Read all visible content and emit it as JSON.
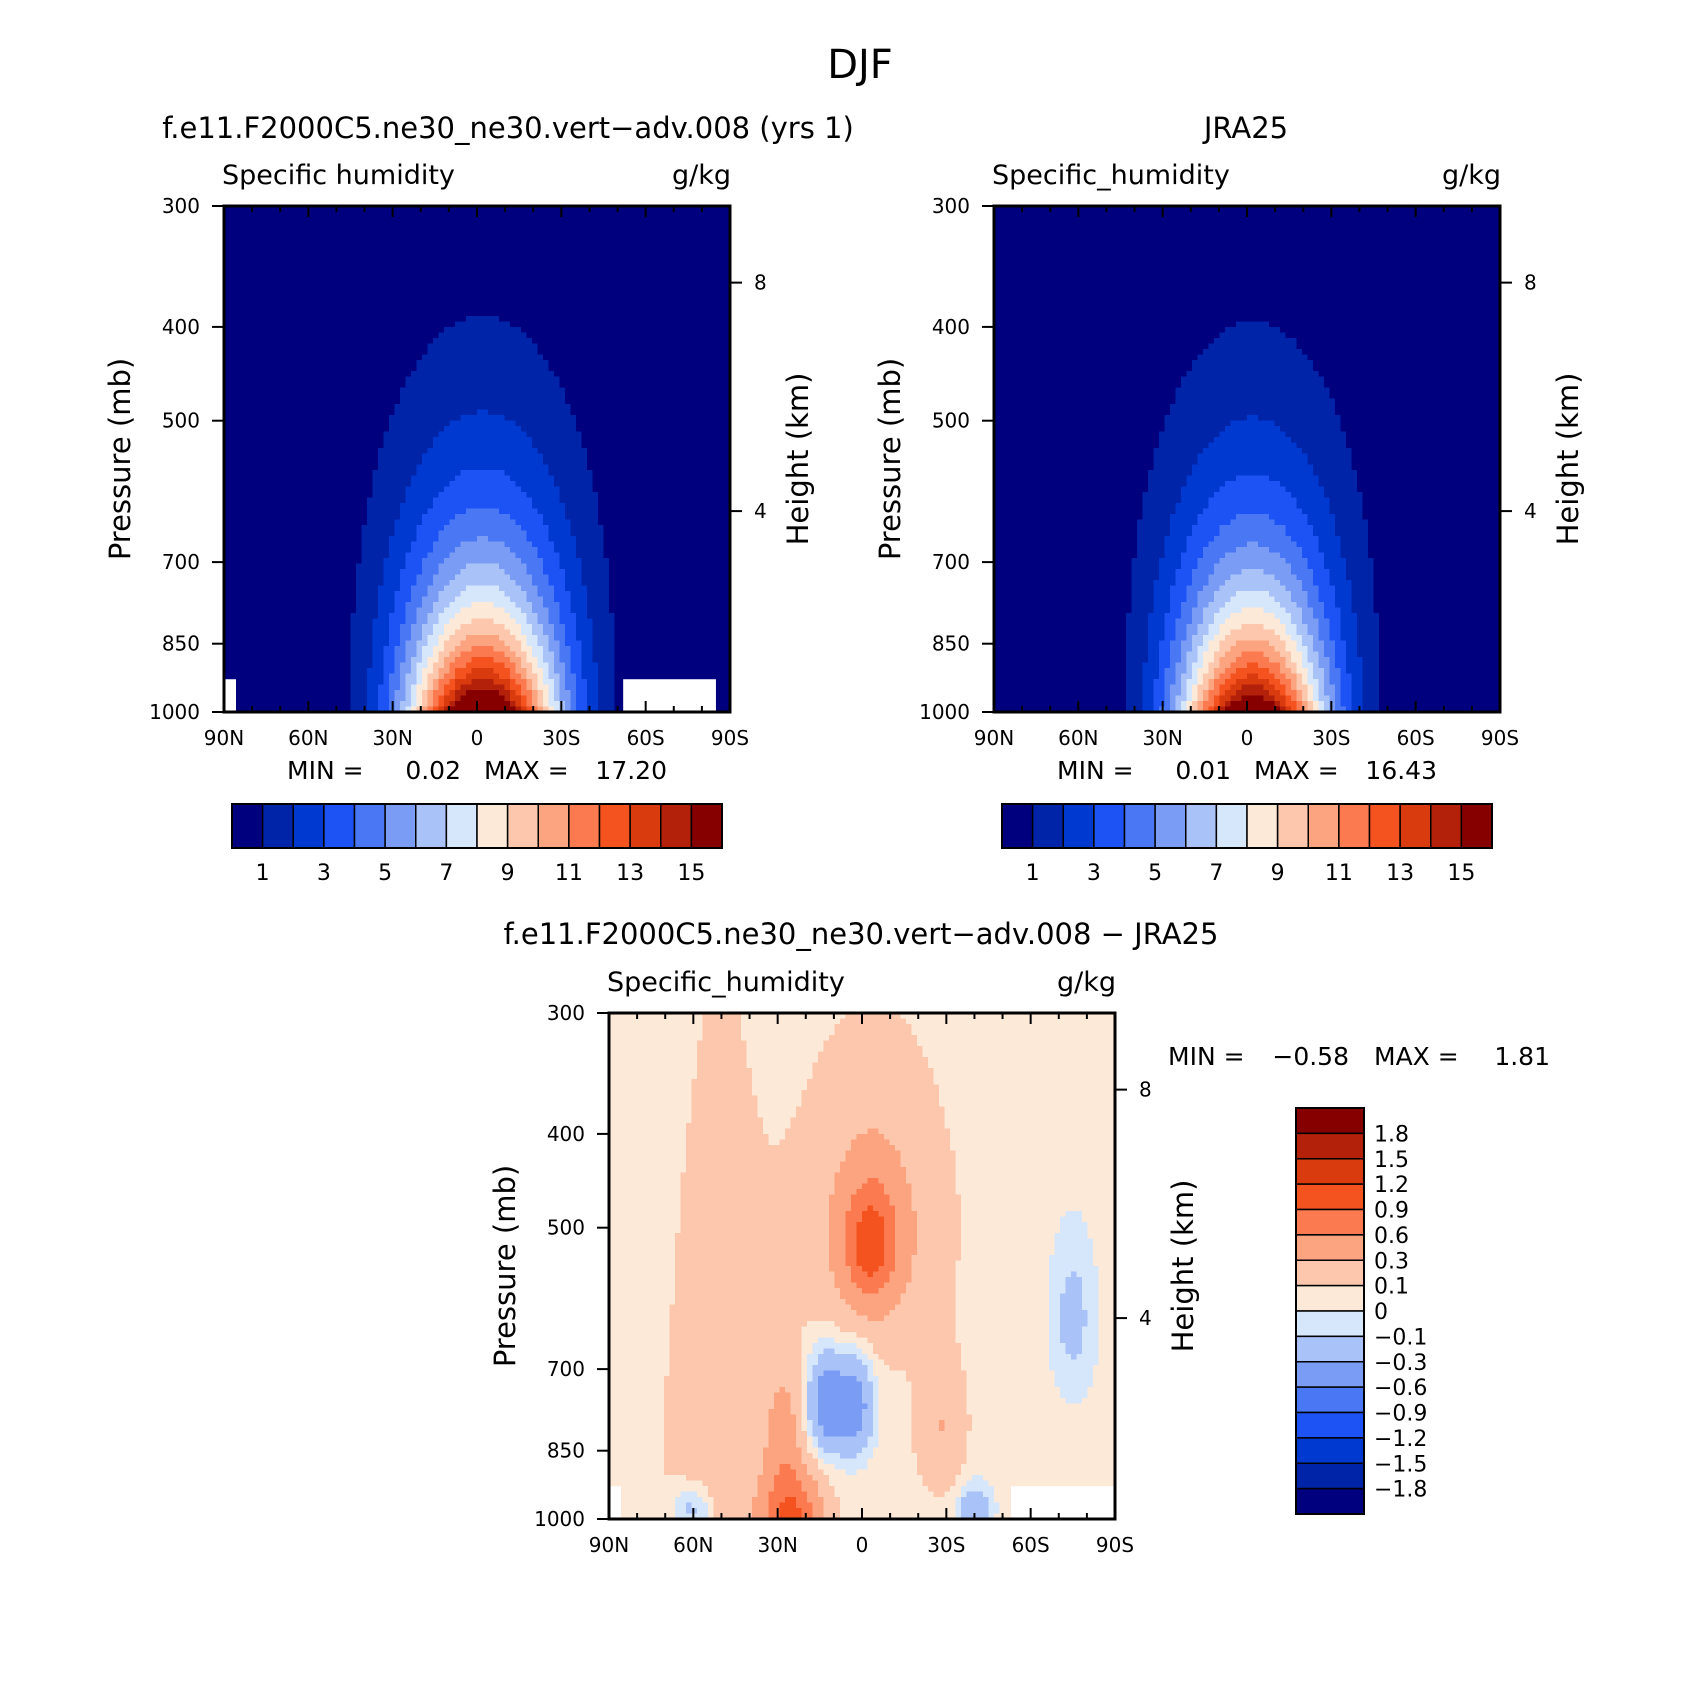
{
  "figure": {
    "title": "DJF"
  },
  "colors": {
    "q_scale": [
      "#00007f",
      "#0024a8",
      "#0039d0",
      "#1d53f5",
      "#4a78f5",
      "#7a9cf5",
      "#a9c3f8",
      "#d6e6fb",
      "#fde9d7",
      "#fcc7ad",
      "#fca47f",
      "#fb7a4f",
      "#f4521f",
      "#d93a0e",
      "#b4210a",
      "#860000"
    ],
    "diff_scale": [
      "#00007f",
      "#0024a8",
      "#0039d0",
      "#1d53f5",
      "#4a78f5",
      "#7a9cf5",
      "#a9c3f8",
      "#d6e6fb",
      "#fde9d7",
      "#fcc7ad",
      "#fca47f",
      "#fb7a4f",
      "#f4521f",
      "#d93a0e",
      "#b4210a",
      "#860000"
    ],
    "missing": "#ffffff"
  },
  "chart_data": [
    {
      "type": "contour",
      "panel_title": "f.e11.F2000C5.ne30_ne30.vert−adv.008 (yrs 1)",
      "left_label": "Specific humidity",
      "units": "g/kg",
      "xlabel": "",
      "ylabel": "Pressure (mb)",
      "ylabel_right": "Height (km)",
      "x_ticks": [
        "90N",
        "60N",
        "30N",
        "0",
        "30S",
        "60S",
        "90S"
      ],
      "y_ticks": [
        "300",
        "400",
        "500",
        "700",
        "850",
        "1000"
      ],
      "y_right_ticks": [
        "8",
        "4"
      ],
      "ylim": [
        1000,
        300
      ],
      "y_scale": "log",
      "stats": {
        "min_label": "MIN =",
        "min": "0.02",
        "max_label": "MAX =",
        "max": "17.20"
      },
      "levels": [
        1,
        2,
        3,
        4,
        5,
        6,
        7,
        8,
        9,
        10,
        11,
        12,
        13,
        14,
        15
      ],
      "colorbar_labels": [
        "1",
        "3",
        "5",
        "7",
        "9",
        "11",
        "13",
        "15"
      ],
      "field": {
        "peak": 17.2,
        "peak_lat": -2,
        "width_surface": 28,
        "width_decay_to": 300,
        "base": 0.02,
        "lapse": 190
      }
    },
    {
      "type": "contour",
      "panel_title": "JRA25",
      "left_label": "Specific_humidity",
      "units": "g/kg",
      "xlabel": "",
      "ylabel": "Pressure (mb)",
      "ylabel_right": "Height (km)",
      "x_ticks": [
        "90N",
        "60N",
        "30N",
        "0",
        "30S",
        "60S",
        "90S"
      ],
      "y_ticks": [
        "300",
        "400",
        "500",
        "700",
        "850",
        "1000"
      ],
      "y_right_ticks": [
        "8",
        "4"
      ],
      "ylim": [
        1000,
        300
      ],
      "y_scale": "log",
      "stats": {
        "min_label": "MIN =",
        "min": "0.01",
        "max_label": "MAX =",
        "max": "16.43"
      },
      "levels": [
        1,
        2,
        3,
        4,
        5,
        6,
        7,
        8,
        9,
        10,
        11,
        12,
        13,
        14,
        15
      ],
      "colorbar_labels": [
        "1",
        "3",
        "5",
        "7",
        "9",
        "11",
        "13",
        "15"
      ],
      "field": {
        "peak": 16.43,
        "peak_lat": -2,
        "width_surface": 27,
        "width_decay_to": 300,
        "base": 0.01,
        "lapse": 185
      }
    },
    {
      "type": "contour",
      "panel_title": "f.e11.F2000C5.ne30_ne30.vert−adv.008 − JRA25",
      "left_label": "Specific_humidity",
      "units": "g/kg",
      "xlabel": "",
      "ylabel": "Pressure (mb)",
      "ylabel_right": "Height (km)",
      "x_ticks": [
        "90N",
        "60N",
        "30N",
        "0",
        "30S",
        "60S",
        "90S"
      ],
      "y_ticks": [
        "300",
        "400",
        "500",
        "700",
        "850",
        "1000"
      ],
      "y_right_ticks": [
        "8",
        "4"
      ],
      "ylim": [
        1000,
        300
      ],
      "y_scale": "log",
      "stats": {
        "min_label": "MIN =",
        "min": "−0.58",
        "max_label": "MAX =",
        "max": "1.81"
      },
      "levels": [
        -1.8,
        -1.5,
        -1.2,
        -0.9,
        -0.6,
        -0.3,
        -0.1,
        0,
        0.1,
        0.3,
        0.6,
        0.9,
        1.2,
        1.5,
        1.8
      ],
      "colorbar_labels": [
        "1.8",
        "1.5",
        "1.2",
        "0.9",
        "0.6",
        "0.3",
        "0.1",
        "0",
        "−0.1",
        "−0.3",
        "−0.6",
        "−0.9",
        "−1.2",
        "−1.5",
        "−1.8"
      ]
    }
  ]
}
